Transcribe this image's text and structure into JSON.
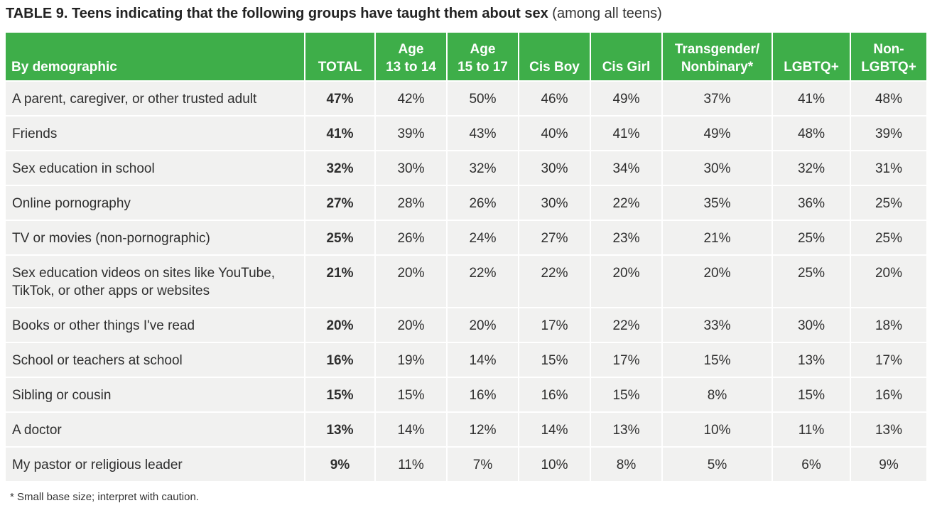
{
  "title": {
    "main": "TABLE 9. Teens indicating that the following groups have taught them about sex",
    "sub": " (among all teens)"
  },
  "headers": [
    [
      "By demographic"
    ],
    [
      "TOTAL"
    ],
    [
      "Age",
      "13 to 14"
    ],
    [
      "Age",
      "15 to 17"
    ],
    [
      "Cis Boy"
    ],
    [
      "Cis Girl"
    ],
    [
      "Transgender/",
      "Nonbinary*"
    ],
    [
      "LGBTQ+"
    ],
    [
      "Non-",
      "LGBTQ+"
    ]
  ],
  "rows": [
    {
      "label": [
        "A parent, caregiver, or other trusted adult"
      ],
      "values": [
        "47%",
        "42%",
        "50%",
        "46%",
        "49%",
        "37%",
        "41%",
        "48%"
      ]
    },
    {
      "label": [
        "Friends"
      ],
      "values": [
        "41%",
        "39%",
        "43%",
        "40%",
        "41%",
        "49%",
        "48%",
        "39%"
      ]
    },
    {
      "label": [
        "Sex education in school"
      ],
      "values": [
        "32%",
        "30%",
        "32%",
        "30%",
        "34%",
        "30%",
        "32%",
        "31%"
      ]
    },
    {
      "label": [
        "Online pornography"
      ],
      "values": [
        "27%",
        "28%",
        "26%",
        "30%",
        "22%",
        "35%",
        "36%",
        "25%"
      ]
    },
    {
      "label": [
        "TV or movies (non-pornographic)"
      ],
      "values": [
        "25%",
        "26%",
        "24%",
        "27%",
        "23%",
        "21%",
        "25%",
        "25%"
      ]
    },
    {
      "label": [
        "Sex education videos on sites like YouTube,",
        "TikTok, or other apps or websites"
      ],
      "values": [
        "21%",
        "20%",
        "22%",
        "22%",
        "20%",
        "20%",
        "25%",
        "20%"
      ]
    },
    {
      "label": [
        "Books or other things I've read"
      ],
      "values": [
        "20%",
        "20%",
        "20%",
        "17%",
        "22%",
        "33%",
        "30%",
        "18%"
      ]
    },
    {
      "label": [
        "School or teachers at school"
      ],
      "values": [
        "16%",
        "19%",
        "14%",
        "15%",
        "17%",
        "15%",
        "13%",
        "17%"
      ]
    },
    {
      "label": [
        "Sibling or cousin"
      ],
      "values": [
        "15%",
        "15%",
        "16%",
        "16%",
        "15%",
        "8%",
        "15%",
        "16%"
      ]
    },
    {
      "label": [
        "A doctor"
      ],
      "values": [
        "13%",
        "14%",
        "12%",
        "14%",
        "13%",
        "10%",
        "11%",
        "13%"
      ]
    },
    {
      "label": [
        "My pastor or religious leader"
      ],
      "values": [
        "9%",
        "11%",
        "7%",
        "10%",
        "8%",
        "5%",
        "6%",
        "9%"
      ]
    }
  ],
  "footnote": "* Small base size; interpret with caution.",
  "colors": {
    "header_bg": "#3eae49",
    "header_text": "#ffffff",
    "cell_bg": "#f1f1f0"
  }
}
